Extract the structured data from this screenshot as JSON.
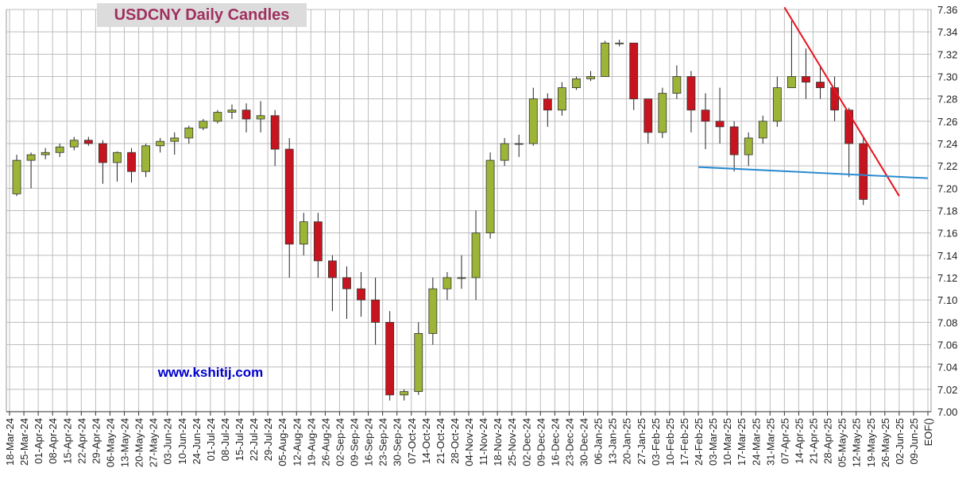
{
  "chart_data": {
    "type": "candlestick",
    "title": "USDCNY Daily Candles",
    "annotation": "www.kshitij.com",
    "categories": [
      "18-Mar-24",
      "25-Mar-24",
      "01-Apr-24",
      "08-Apr-24",
      "15-Apr-24",
      "22-Apr-24",
      "29-Apr-24",
      "06-May-24",
      "13-May-24",
      "20-May-24",
      "27-May-24",
      "03-Jun-24",
      "10-Jun-24",
      "24-Jun-24",
      "01-Jul-24",
      "08-Jul-24",
      "15-Jul-24",
      "22-Jul-24",
      "29-Jul-24",
      "05-Aug-24",
      "12-Aug-24",
      "19-Aug-24",
      "26-Aug-24",
      "02-Sep-24",
      "09-Sep-24",
      "16-Sep-24",
      "23-Sep-24",
      "30-Sep-24",
      "07-Oct-24",
      "14-Oct-24",
      "21-Oct-24",
      "28-Oct-24",
      "04-Nov-24",
      "11-Nov-24",
      "18-Nov-24",
      "25-Nov-24",
      "02-Dec-24",
      "09-Dec-24",
      "16-Dec-24",
      "23-Dec-24",
      "30-Dec-24",
      "06-Jan-25",
      "13-Jan-25",
      "20-Jan-25",
      "27-Jan-25",
      "03-Feb-25",
      "10-Feb-25",
      "17-Feb-25",
      "24-Feb-25",
      "03-Mar-25",
      "10-Mar-25",
      "17-Mar-25",
      "24-Mar-25",
      "31-Mar-25",
      "07-Apr-25",
      "14-Apr-25",
      "21-Apr-25",
      "28-Apr-25",
      "05-May-25",
      "12-May-25",
      "19-May-25",
      "26-May-25",
      "02-Jun-25",
      "09-Jun-25",
      "EOF()"
    ],
    "open": [
      7.195,
      7.225,
      7.23,
      7.232,
      7.237,
      7.243,
      7.24,
      7.223,
      7.232,
      7.215,
      7.238,
      7.242,
      7.245,
      7.254,
      7.26,
      7.268,
      7.27,
      7.262,
      7.265,
      7.235,
      7.15,
      7.17,
      7.135,
      7.12,
      7.11,
      7.1,
      7.08,
      7.015,
      7.018,
      7.07,
      7.11,
      7.12,
      7.12,
      7.16,
      7.225,
      7.24,
      7.24,
      7.28,
      7.27,
      7.29,
      7.298,
      7.3,
      7.33,
      7.33,
      7.28,
      7.25,
      7.285,
      7.3,
      7.27,
      7.26,
      7.255,
      7.23,
      7.245,
      7.26,
      7.29,
      7.3,
      7.295,
      7.29,
      7.27,
      7.24,
      null,
      null,
      null,
      null,
      null
    ],
    "high": [
      7.23,
      7.232,
      7.236,
      7.24,
      7.246,
      7.246,
      7.243,
      7.233,
      7.236,
      7.24,
      7.245,
      7.25,
      7.256,
      7.262,
      7.27,
      7.275,
      7.276,
      7.278,
      7.27,
      7.245,
      7.178,
      7.178,
      7.14,
      7.13,
      7.125,
      7.12,
      7.09,
      7.02,
      7.08,
      7.12,
      7.125,
      7.14,
      7.18,
      7.232,
      7.245,
      7.248,
      7.29,
      7.285,
      7.295,
      7.3,
      7.305,
      7.332,
      7.333,
      7.33,
      7.28,
      7.29,
      7.31,
      7.305,
      7.285,
      7.29,
      7.26,
      7.25,
      7.265,
      7.3,
      7.35,
      7.325,
      7.31,
      7.3,
      7.272,
      7.245,
      null,
      null,
      null,
      null,
      null
    ],
    "low": [
      7.193,
      7.2,
      7.226,
      7.228,
      7.234,
      7.238,
      7.204,
      7.206,
      7.205,
      7.21,
      7.232,
      7.23,
      7.24,
      7.252,
      7.258,
      7.262,
      7.25,
      7.25,
      7.22,
      7.12,
      7.14,
      7.12,
      7.09,
      7.083,
      7.085,
      7.06,
      7.01,
      7.01,
      7.015,
      7.06,
      7.1,
      7.11,
      7.1,
      7.155,
      7.22,
      7.228,
      7.238,
      7.255,
      7.265,
      7.288,
      7.296,
      7.3,
      7.327,
      7.27,
      7.24,
      7.245,
      7.28,
      7.25,
      7.235,
      7.24,
      7.215,
      7.22,
      7.24,
      7.255,
      7.29,
      7.28,
      7.28,
      7.26,
      7.21,
      7.185,
      null,
      null,
      null,
      null,
      null
    ],
    "close": [
      7.225,
      7.23,
      7.232,
      7.237,
      7.243,
      7.24,
      7.223,
      7.232,
      7.215,
      7.238,
      7.242,
      7.245,
      7.254,
      7.26,
      7.268,
      7.27,
      7.262,
      7.265,
      7.235,
      7.15,
      7.17,
      7.135,
      7.12,
      7.11,
      7.1,
      7.08,
      7.015,
      7.018,
      7.07,
      7.11,
      7.12,
      7.12,
      7.16,
      7.225,
      7.24,
      7.24,
      7.28,
      7.27,
      7.29,
      7.298,
      7.3,
      7.33,
      7.33,
      7.28,
      7.25,
      7.285,
      7.3,
      7.27,
      7.26,
      7.255,
      7.23,
      7.245,
      7.26,
      7.29,
      7.3,
      7.295,
      7.29,
      7.27,
      7.24,
      7.19,
      null,
      null,
      null,
      null,
      null
    ],
    "up_color": "#9cb536",
    "down_color": "#c8141e",
    "ylim": [
      7.0,
      7.36
    ],
    "yticks": [
      {
        "value": 7.0,
        "label": "7.00"
      },
      {
        "value": 7.02,
        "label": "7.02"
      },
      {
        "value": 7.04,
        "label": "7.04"
      },
      {
        "value": 7.06,
        "label": "7.06"
      },
      {
        "value": 7.08,
        "label": "7.08"
      },
      {
        "value": 7.1,
        "label": "7.10"
      },
      {
        "value": 7.12,
        "label": "7.12"
      },
      {
        "value": 7.14,
        "label": "7.14"
      },
      {
        "value": 7.16,
        "label": "7.16"
      },
      {
        "value": 7.18,
        "label": "7.18"
      },
      {
        "value": 7.2,
        "label": "7.20"
      },
      {
        "value": 7.22,
        "label": "7.22"
      },
      {
        "value": 7.24,
        "label": "7.24"
      },
      {
        "value": 7.26,
        "label": "7.26"
      },
      {
        "value": 7.28,
        "label": "7.28"
      },
      {
        "value": 7.3,
        "label": "7.30"
      },
      {
        "value": 7.32,
        "label": "7.32"
      },
      {
        "value": 7.34,
        "label": "7.34"
      },
      {
        "value": 7.36,
        "label": "7.36"
      }
    ],
    "grid": true,
    "trendlines": [
      {
        "color": "#e8141e",
        "x": [
          "07-Apr-25",
          "02-Jun-25"
        ],
        "y": [
          7.362,
          7.193
        ]
      },
      {
        "color": "#2a8ad0",
        "x": [
          "24-Feb-25",
          "EOF()"
        ],
        "y": [
          7.219,
          7.209
        ]
      }
    ]
  }
}
